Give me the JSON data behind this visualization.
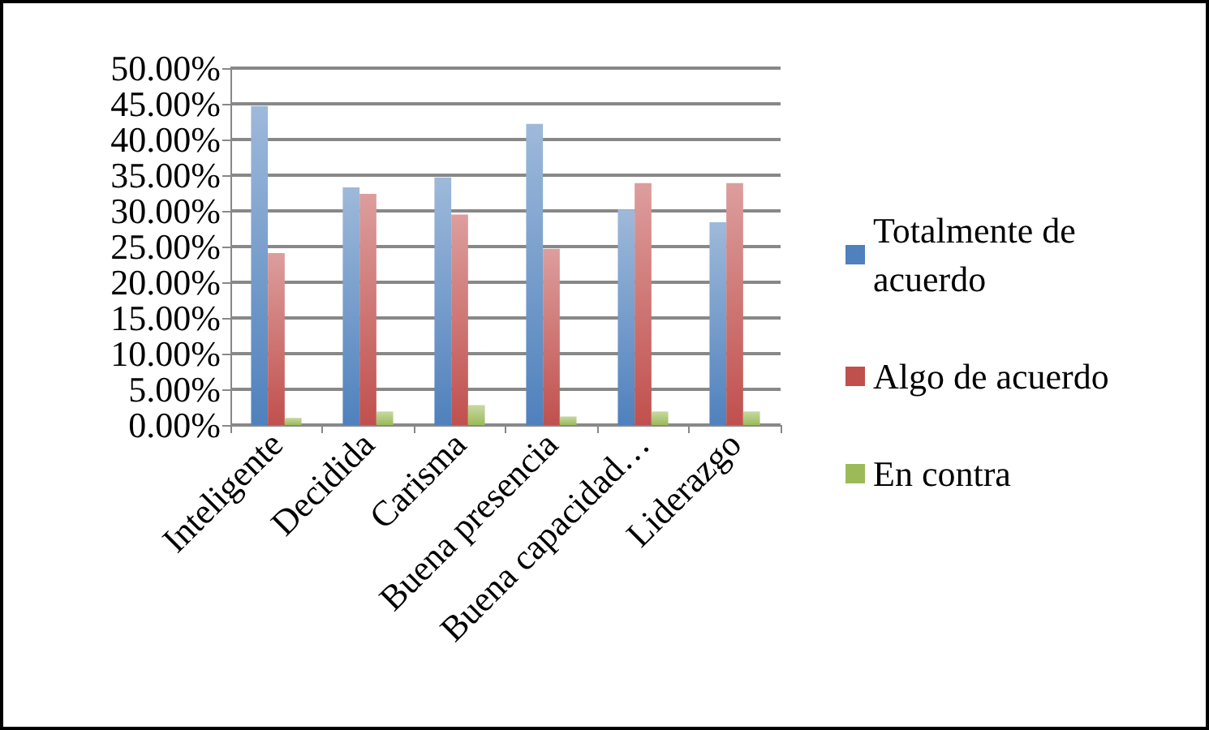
{
  "chart_data": {
    "type": "bar",
    "categories": [
      "Inteligente",
      "Decidida",
      "Carisma",
      "Buena presencia",
      "Buena capacidad…",
      "Liderazgo"
    ],
    "series": [
      {
        "name": "Totalmente de acuerdo",
        "color": "#4f81bd",
        "values": [
          44.7,
          33.3,
          34.7,
          42.2,
          30.2,
          28.4
        ]
      },
      {
        "name": "Algo de acuerdo",
        "color": "#c0504d",
        "values": [
          24.1,
          32.4,
          29.5,
          24.7,
          33.9,
          33.9
        ]
      },
      {
        "name": "En contra",
        "color": "#9bbb59",
        "values": [
          1.0,
          1.9,
          2.8,
          1.2,
          1.9,
          1.9
        ]
      }
    ],
    "ylim": [
      0,
      50
    ],
    "yticks": [
      {
        "value": 0,
        "label": "0.00%"
      },
      {
        "value": 5,
        "label": "5.00%"
      },
      {
        "value": 10,
        "label": "10.00%"
      },
      {
        "value": 15,
        "label": "15.00%"
      },
      {
        "value": 20,
        "label": "20.00%"
      },
      {
        "value": 25,
        "label": "25.00%"
      },
      {
        "value": 30,
        "label": "30.00%"
      },
      {
        "value": 35,
        "label": "35.00%"
      },
      {
        "value": 40,
        "label": "40.00%"
      },
      {
        "value": 45,
        "label": "45.00%"
      },
      {
        "value": 50,
        "label": "50.00%"
      }
    ],
    "grid": "y",
    "legend": "right"
  }
}
